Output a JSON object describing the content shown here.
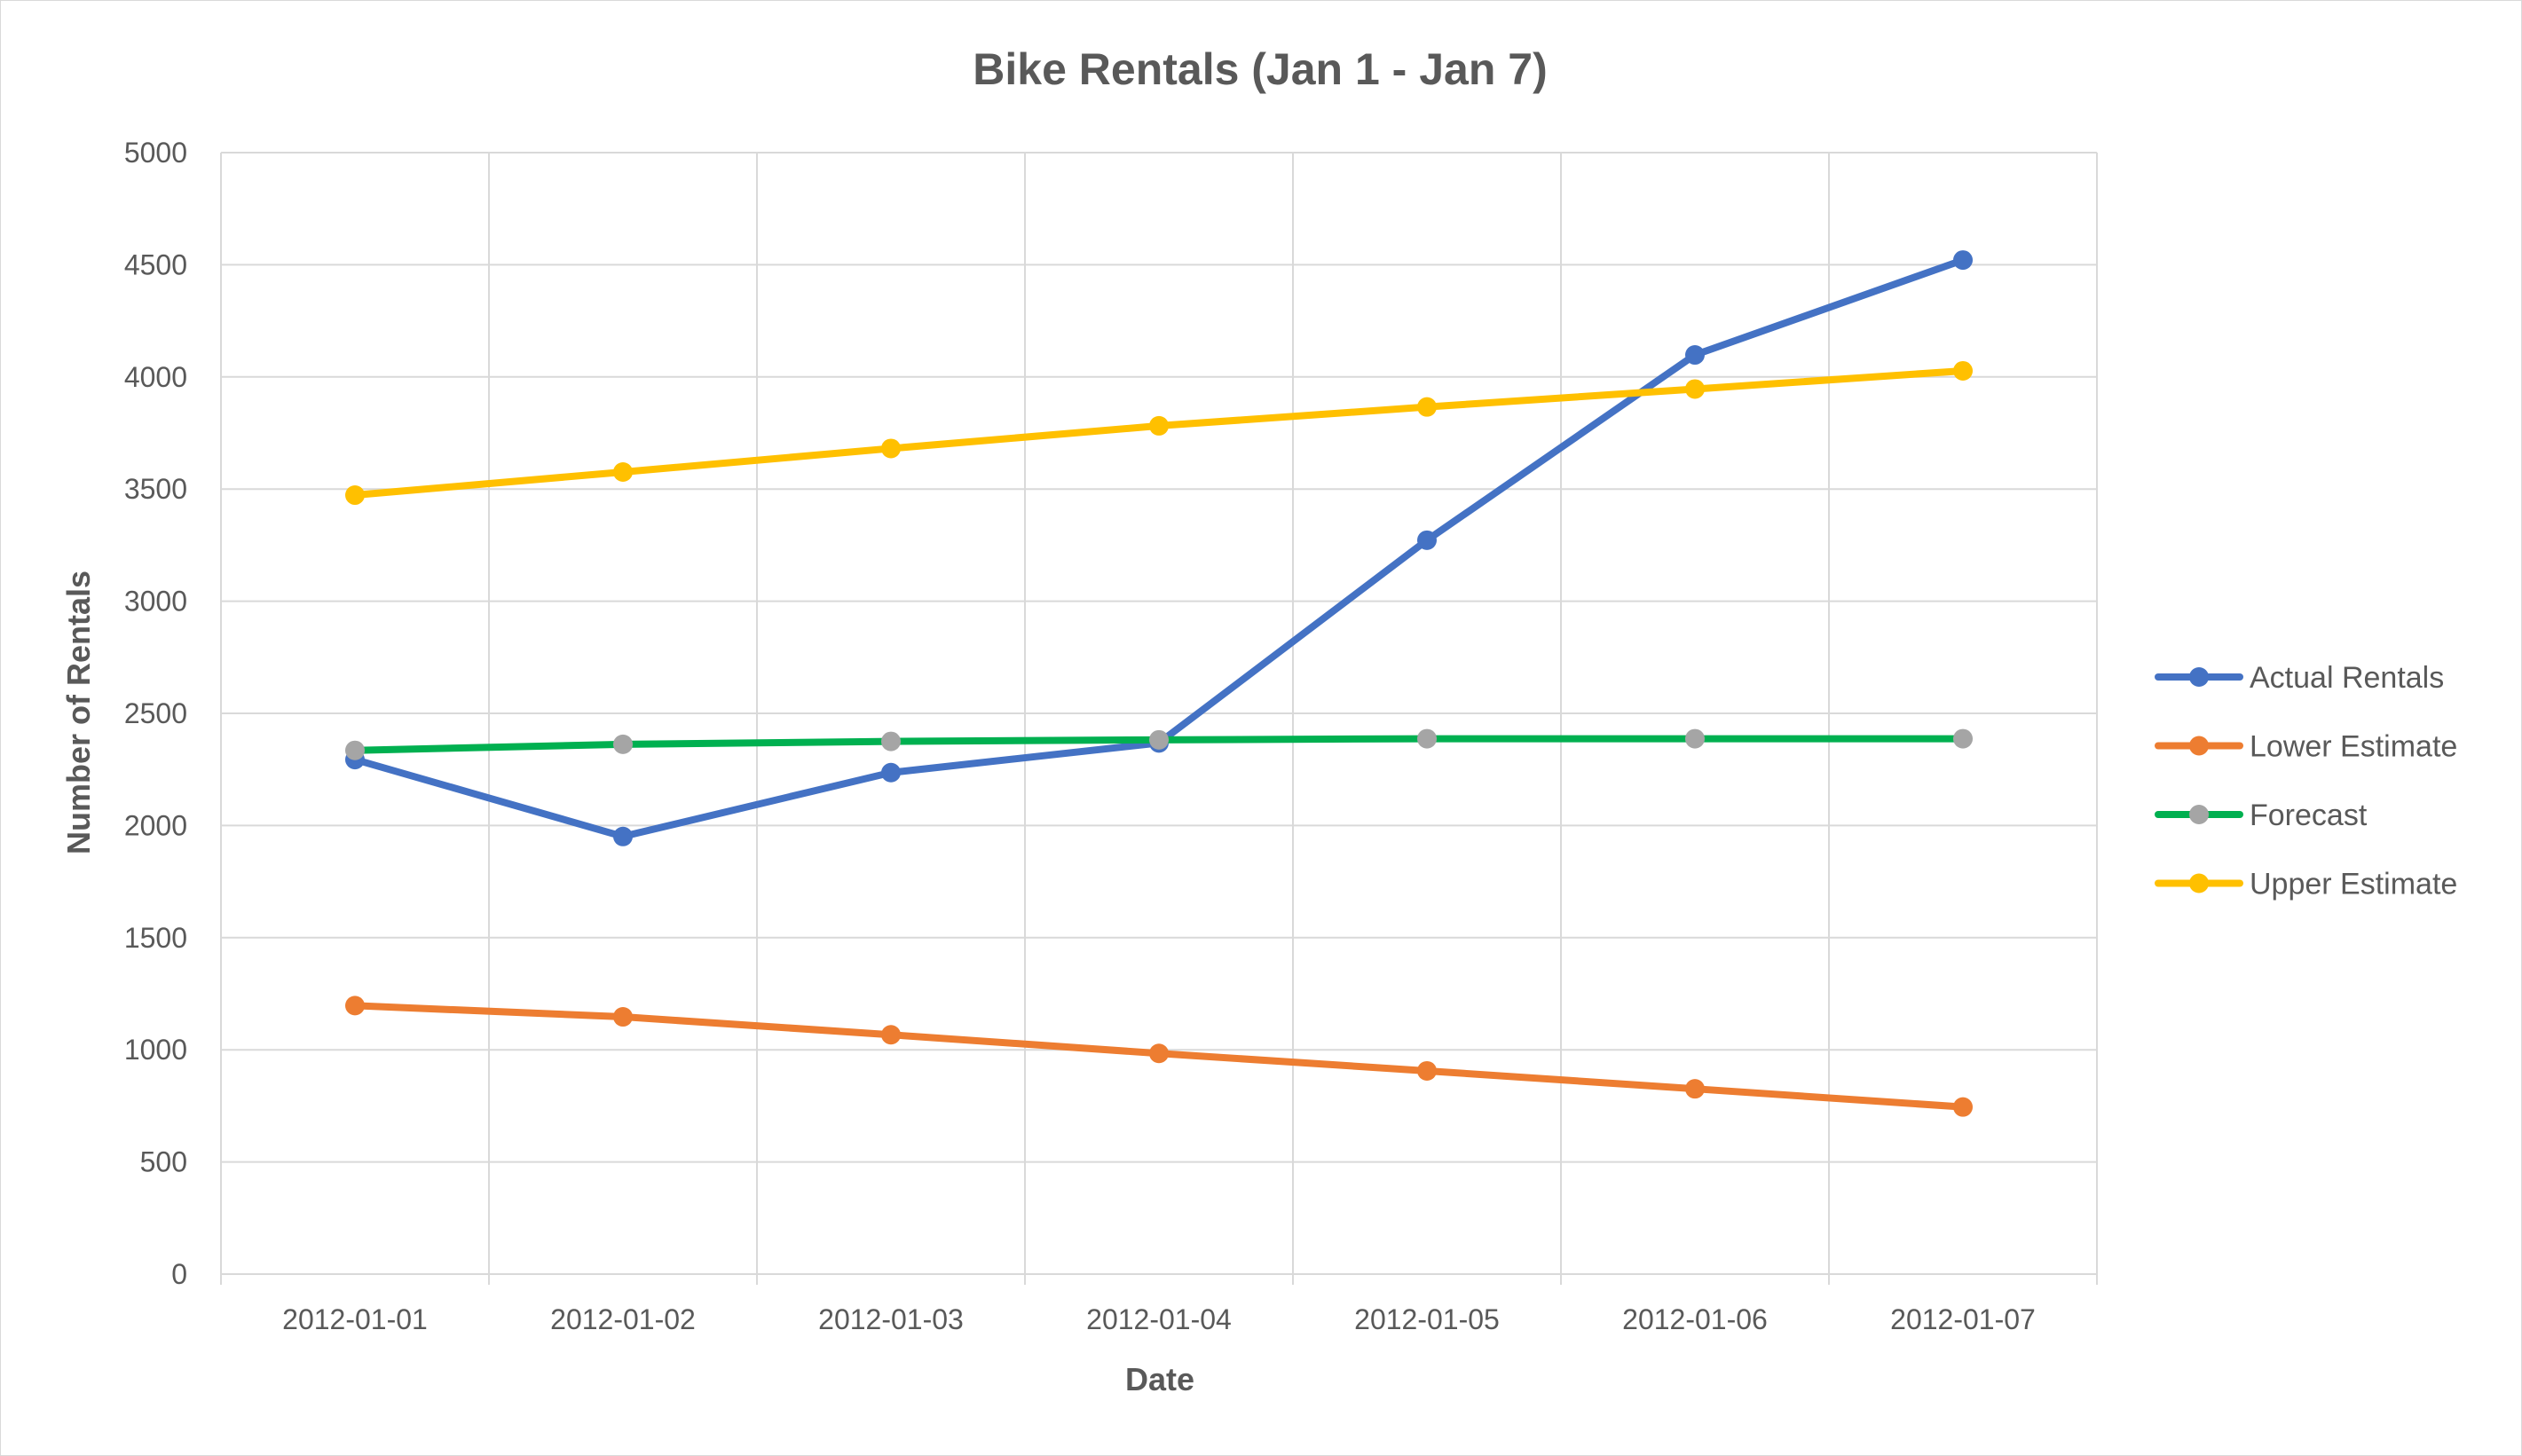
{
  "chart_data": {
    "type": "line",
    "title": "Bike Rentals (Jan 1 - Jan 7)",
    "xlabel": "Date",
    "ylabel": "Number of Rentals",
    "categories": [
      "2012-01-01",
      "2012-01-02",
      "2012-01-03",
      "2012-01-04",
      "2012-01-05",
      "2012-01-06",
      "2012-01-07"
    ],
    "ylim": [
      0,
      5000
    ],
    "yticks": [
      0,
      500,
      1000,
      1500,
      2000,
      2500,
      3000,
      3500,
      4000,
      4500,
      5000
    ],
    "grid": true,
    "legend_position": "right",
    "series": [
      {
        "name": "Actual Rentals",
        "color": "#4472c4",
        "marker_color": "#4472c4",
        "values": [
          2294,
          1951,
          2236,
          2368,
          3272,
          4098,
          4521
        ]
      },
      {
        "name": "Lower Estimate",
        "color": "#ed7d31",
        "marker_color": "#ed7d31",
        "values": [
          1197,
          1147,
          1067,
          984,
          906,
          826,
          745
        ]
      },
      {
        "name": "Forecast",
        "color": "#00b050",
        "marker_color": "#a5a5a5",
        "values": [
          2335,
          2362,
          2375,
          2382,
          2387,
          2387,
          2387
        ]
      },
      {
        "name": "Upper Estimate",
        "color": "#ffc000",
        "marker_color": "#ffc000",
        "values": [
          3473,
          3576,
          3681,
          3782,
          3866,
          3946,
          4027
        ]
      }
    ]
  }
}
